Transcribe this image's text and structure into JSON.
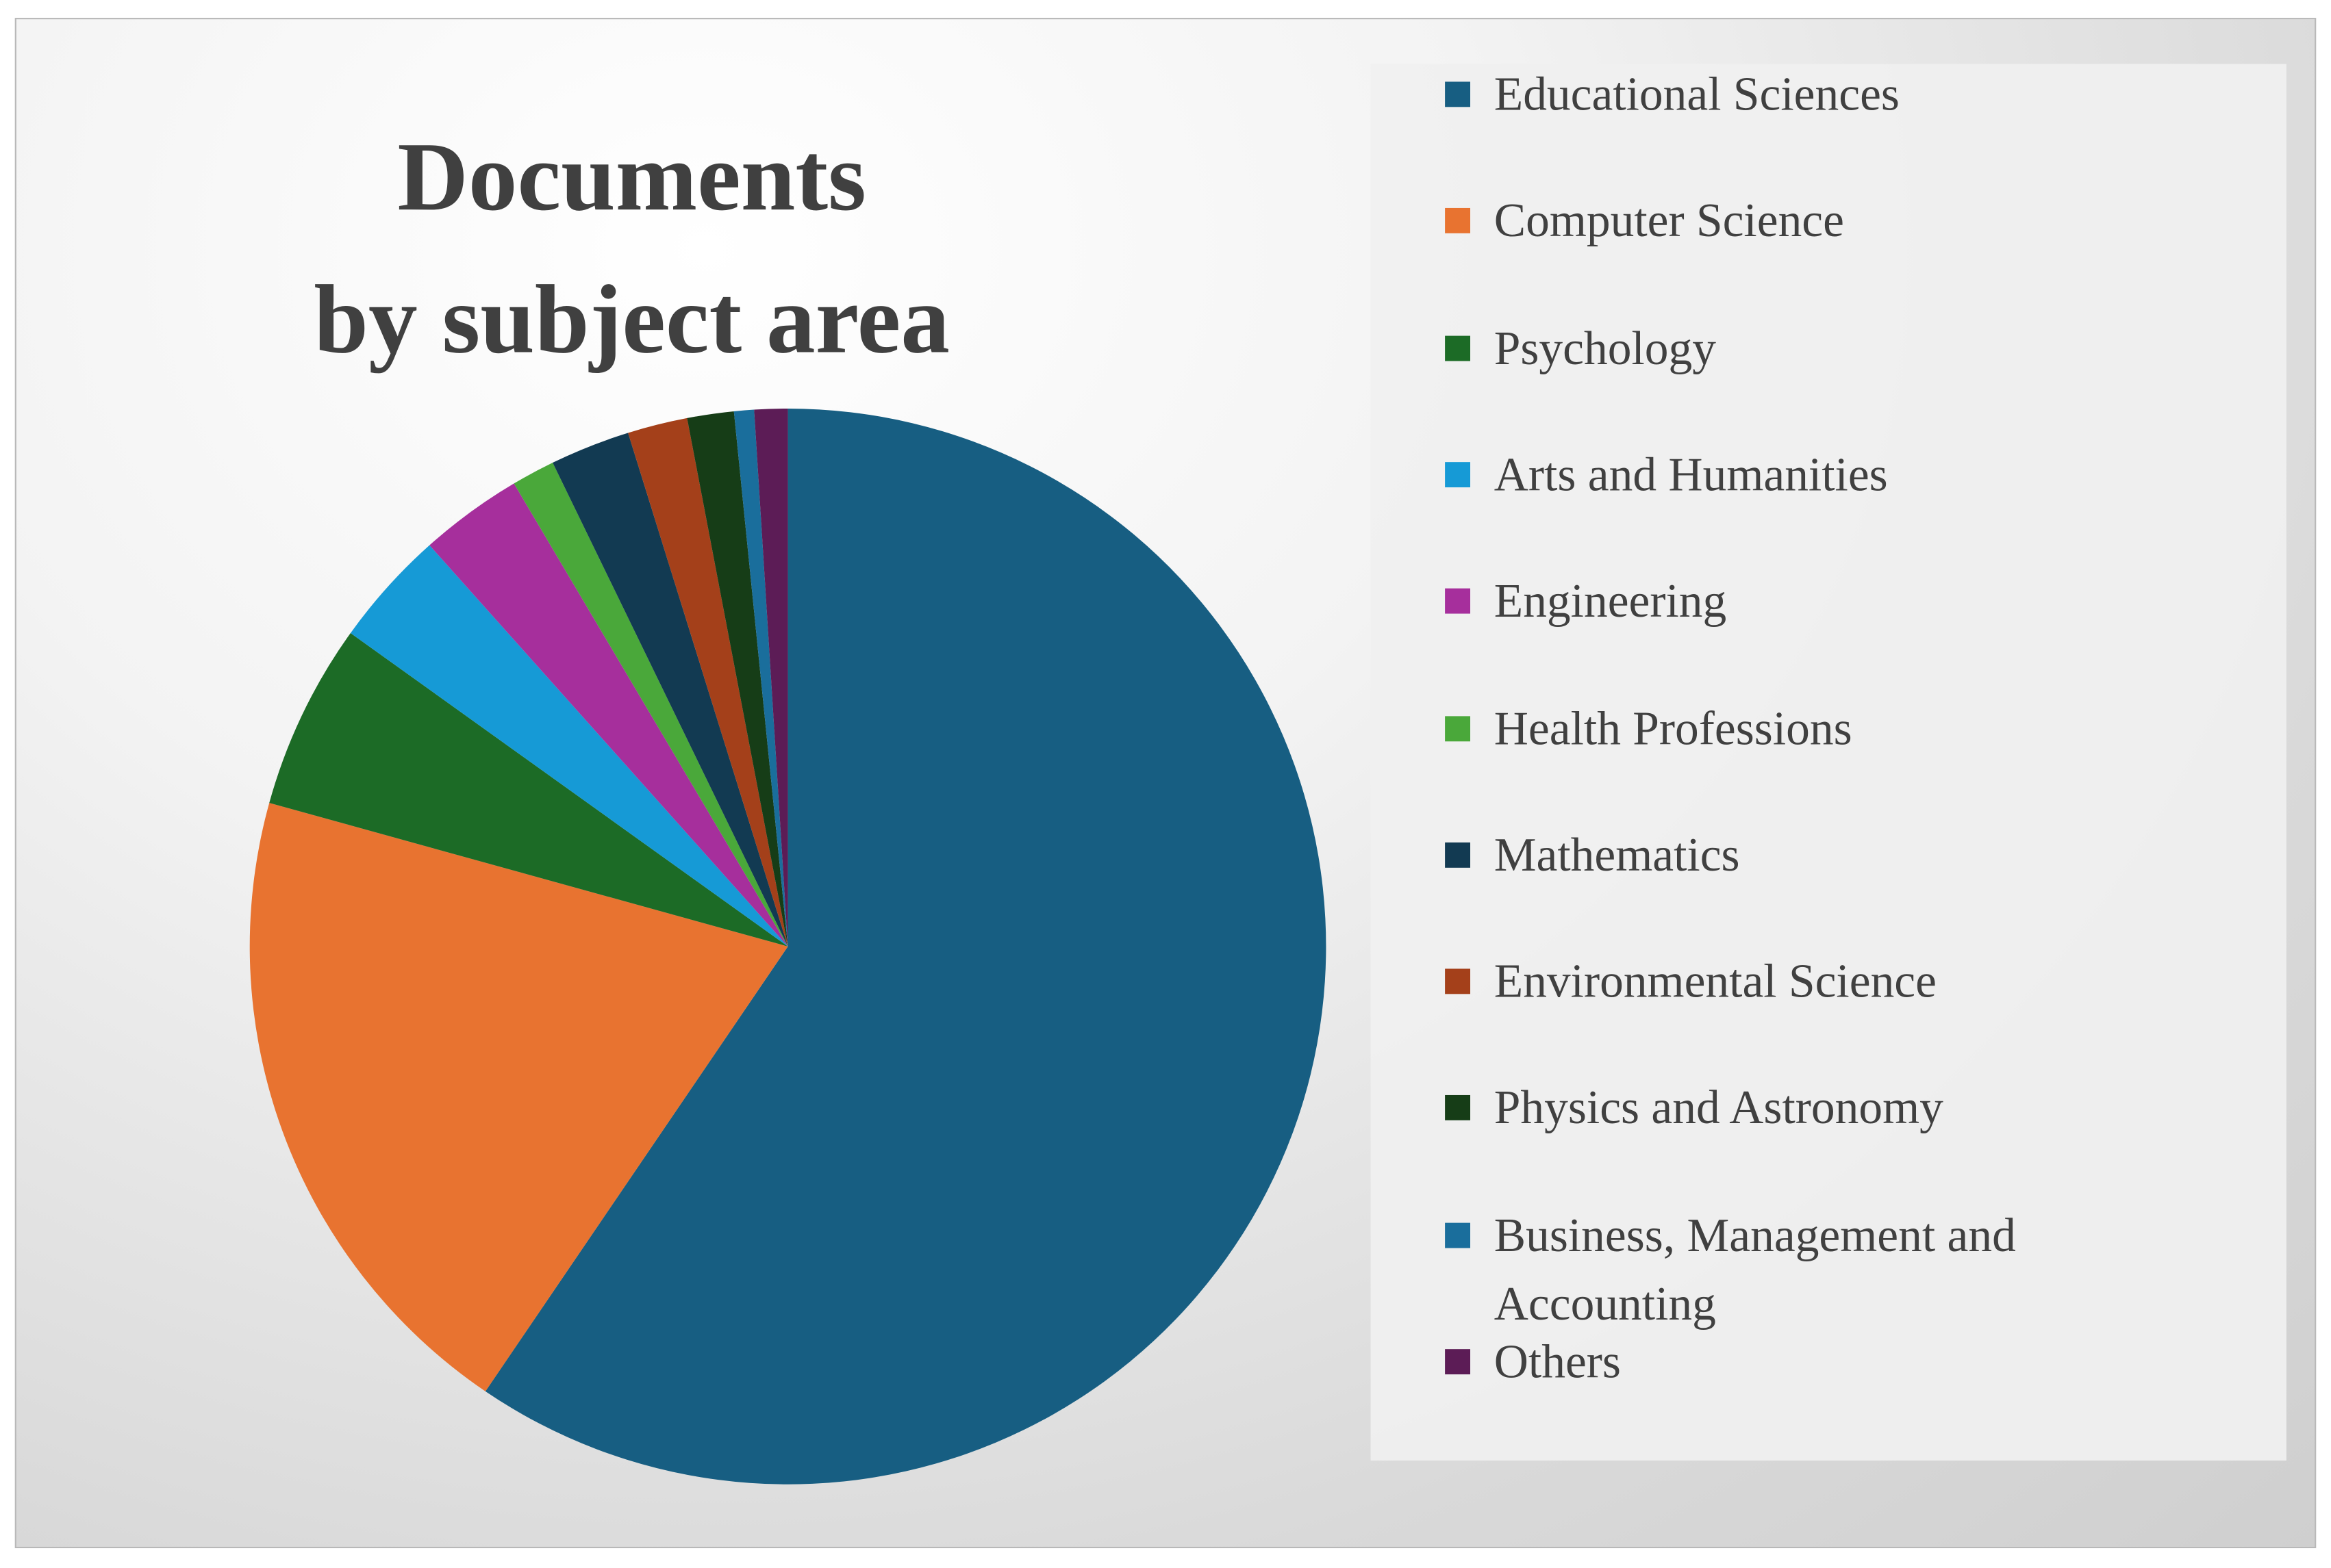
{
  "chart_data": {
    "type": "pie",
    "title": "Documents\nby subject  area",
    "categories": [
      "Educational Sciences",
      "Computer Science",
      "Psychology",
      "Arts and Humanities",
      "Engineering",
      "Health Professions",
      "Mathematics",
      "Environmental Science",
      "Physics and Astronomy",
      "Business, Management and Accounting",
      "Others"
    ],
    "values": [
      59.5,
      19.8,
      5.6,
      3.5,
      3.1,
      1.3,
      2.4,
      1.8,
      1.4,
      0.6,
      1.0
    ],
    "colors": [
      "#175e82",
      "#e87330",
      "#1c6b26",
      "#169ad6",
      "#a62f9c",
      "#4aa83a",
      "#123a52",
      "#a4401a",
      "#163d17",
      "#1a6e9c",
      "#5c1c56"
    ],
    "legend": "right"
  }
}
